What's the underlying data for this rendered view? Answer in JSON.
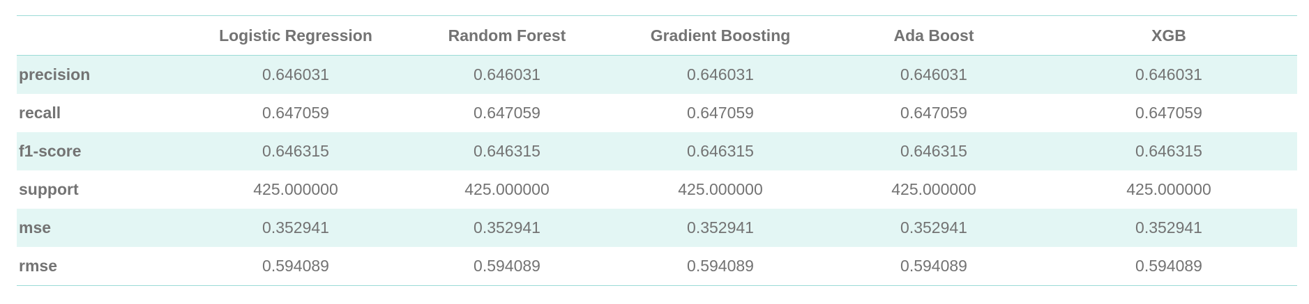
{
  "table": {
    "columns": [
      "",
      "Logistic Regression",
      "Random Forest",
      "Gradient Boosting",
      "Ada Boost",
      "XGB"
    ],
    "rows": [
      {
        "label": "precision",
        "values": [
          "0.646031",
          "0.646031",
          "0.646031",
          "0.646031",
          "0.646031"
        ]
      },
      {
        "label": "recall",
        "values": [
          "0.647059",
          "0.647059",
          "0.647059",
          "0.647059",
          "0.647059"
        ]
      },
      {
        "label": "f1-score",
        "values": [
          "0.646315",
          "0.646315",
          "0.646315",
          "0.646315",
          "0.646315"
        ]
      },
      {
        "label": "support",
        "values": [
          "425.000000",
          "425.000000",
          "425.000000",
          "425.000000",
          "425.000000"
        ]
      },
      {
        "label": "mse",
        "values": [
          "0.352941",
          "0.352941",
          "0.352941",
          "0.352941",
          "0.352941"
        ]
      },
      {
        "label": "rmse",
        "values": [
          "0.594089",
          "0.594089",
          "0.594089",
          "0.594089",
          "0.594089"
        ]
      }
    ],
    "colors": {
      "border": "#9adbd6",
      "stripe": "#e3f6f4",
      "text": "#737373"
    }
  }
}
